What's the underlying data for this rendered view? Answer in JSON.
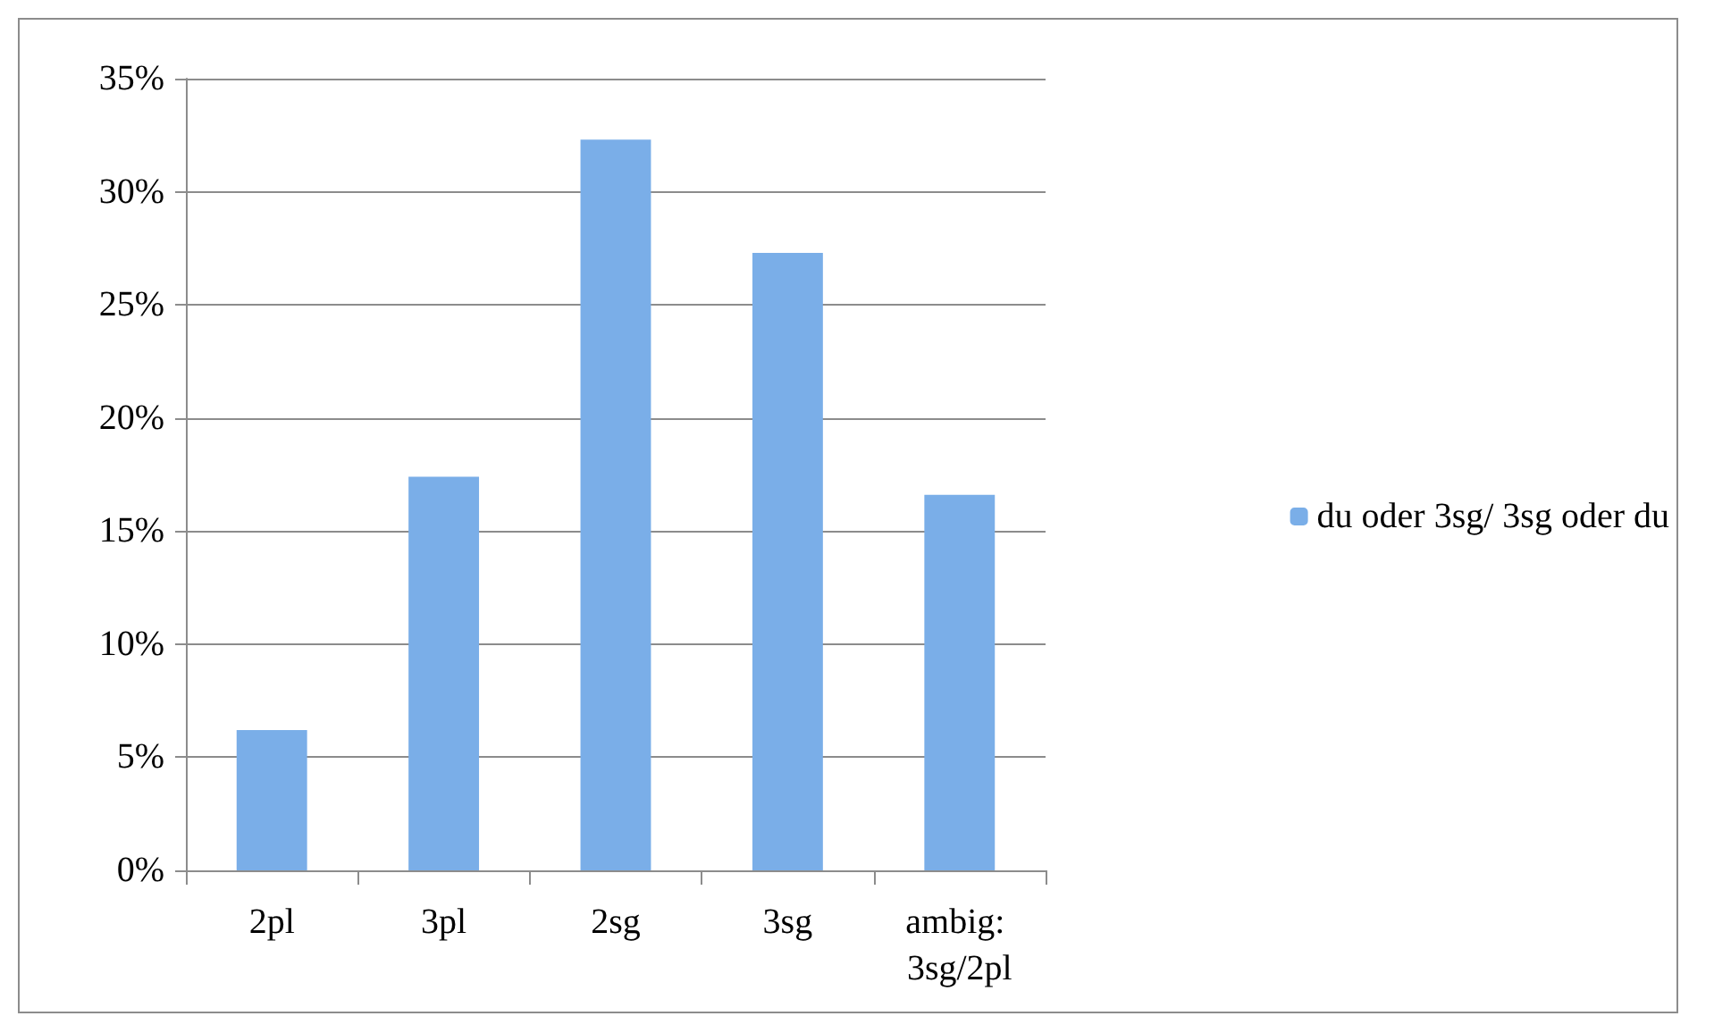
{
  "chart_data": {
    "type": "bar",
    "categories": [
      "2pl",
      "3pl",
      "2sg",
      "3sg",
      "ambig: 3sg/2pl"
    ],
    "series": [
      {
        "name": "du oder 3sg/ 3sg oder du",
        "color": "#7aaee8",
        "values": [
          6.2,
          17.4,
          32.3,
          27.3,
          16.6
        ]
      }
    ],
    "ylim": [
      0,
      35
    ],
    "yticks": [
      {
        "value": 0,
        "label": "0%"
      },
      {
        "value": 5,
        "label": "5%"
      },
      {
        "value": 10,
        "label": "10%"
      },
      {
        "value": 15,
        "label": "15%"
      },
      {
        "value": 20,
        "label": "20%"
      },
      {
        "value": 25,
        "label": "25%"
      },
      {
        "value": 30,
        "label": "30%"
      },
      {
        "value": 35,
        "label": "35%"
      }
    ],
    "grid": "y",
    "legend": "right"
  }
}
